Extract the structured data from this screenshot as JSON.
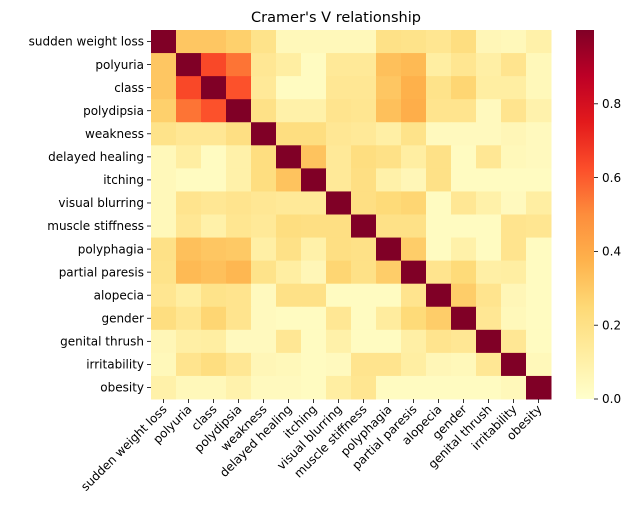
{
  "chart_data": {
    "type": "heatmap",
    "title": "Cramer's V relationship",
    "xlabel": "",
    "ylabel": "",
    "labels": [
      "sudden weight loss",
      "polyuria",
      "class",
      "polydipsia",
      "weakness",
      "delayed healing",
      "itching",
      "visual blurring",
      "muscle stiffness",
      "polyphagia",
      "partial paresis",
      "alopecia",
      "gender",
      "genital thrush",
      "irritability",
      "obesity"
    ],
    "matrix": [
      [
        1.0,
        0.31,
        0.31,
        0.28,
        0.19,
        0.05,
        0.05,
        0.05,
        0.05,
        0.2,
        0.19,
        0.17,
        0.22,
        0.06,
        0.05,
        0.1
      ],
      [
        0.31,
        1.0,
        0.64,
        0.55,
        0.16,
        0.12,
        0.03,
        0.15,
        0.15,
        0.33,
        0.35,
        0.12,
        0.17,
        0.11,
        0.18,
        0.05
      ],
      [
        0.31,
        0.64,
        1.0,
        0.62,
        0.15,
        0.03,
        0.03,
        0.16,
        0.16,
        0.31,
        0.38,
        0.19,
        0.26,
        0.12,
        0.12,
        0.05
      ],
      [
        0.28,
        0.55,
        0.62,
        1.0,
        0.2,
        0.1,
        0.1,
        0.18,
        0.17,
        0.33,
        0.39,
        0.18,
        0.18,
        0.04,
        0.18,
        0.09
      ],
      [
        0.19,
        0.16,
        0.16,
        0.21,
        1.0,
        0.22,
        0.22,
        0.16,
        0.15,
        0.11,
        0.19,
        0.04,
        0.04,
        0.04,
        0.06,
        0.04
      ],
      [
        0.05,
        0.12,
        0.03,
        0.1,
        0.22,
        1.0,
        0.32,
        0.15,
        0.22,
        0.2,
        0.12,
        0.2,
        0.03,
        0.16,
        0.05,
        0.04
      ],
      [
        0.05,
        0.03,
        0.03,
        0.1,
        0.22,
        0.32,
        1.0,
        0.15,
        0.21,
        0.1,
        0.06,
        0.2,
        0.03,
        0.03,
        0.03,
        0.03
      ],
      [
        0.05,
        0.18,
        0.16,
        0.18,
        0.16,
        0.15,
        0.15,
        1.0,
        0.21,
        0.24,
        0.26,
        0.03,
        0.16,
        0.1,
        0.04,
        0.12
      ],
      [
        0.05,
        0.16,
        0.1,
        0.17,
        0.15,
        0.22,
        0.21,
        0.21,
        1.0,
        0.2,
        0.2,
        0.03,
        0.03,
        0.03,
        0.18,
        0.17
      ],
      [
        0.2,
        0.33,
        0.31,
        0.3,
        0.11,
        0.2,
        0.1,
        0.21,
        0.2,
        1.0,
        0.29,
        0.03,
        0.1,
        0.03,
        0.18,
        0.03
      ],
      [
        0.19,
        0.35,
        0.33,
        0.36,
        0.19,
        0.12,
        0.06,
        0.26,
        0.2,
        0.29,
        1.0,
        0.18,
        0.24,
        0.11,
        0.12,
        0.03
      ],
      [
        0.17,
        0.12,
        0.19,
        0.18,
        0.04,
        0.2,
        0.2,
        0.03,
        0.03,
        0.03,
        0.18,
        1.0,
        0.29,
        0.18,
        0.06,
        0.03
      ],
      [
        0.22,
        0.17,
        0.26,
        0.18,
        0.04,
        0.03,
        0.03,
        0.16,
        0.03,
        0.13,
        0.24,
        0.29,
        1.0,
        0.16,
        0.05,
        0.03
      ],
      [
        0.06,
        0.11,
        0.12,
        0.04,
        0.04,
        0.16,
        0.03,
        0.1,
        0.03,
        0.03,
        0.11,
        0.18,
        0.16,
        1.0,
        0.16,
        0.03
      ],
      [
        0.05,
        0.18,
        0.22,
        0.16,
        0.06,
        0.05,
        0.03,
        0.04,
        0.18,
        0.18,
        0.12,
        0.06,
        0.05,
        0.16,
        1.0,
        0.05
      ],
      [
        0.1,
        0.05,
        0.05,
        0.09,
        0.04,
        0.04,
        0.03,
        0.12,
        0.17,
        0.03,
        0.03,
        0.03,
        0.03,
        0.03,
        0.05,
        1.0
      ]
    ],
    "colorbar": {
      "colormap": "YlOrRd",
      "range": [
        0,
        1
      ],
      "ticks": [
        0.0,
        0.2,
        0.4,
        0.6,
        0.8
      ],
      "tick_labels": [
        "0.0",
        "0.2",
        "0.4",
        "0.6",
        "0.8"
      ]
    }
  }
}
